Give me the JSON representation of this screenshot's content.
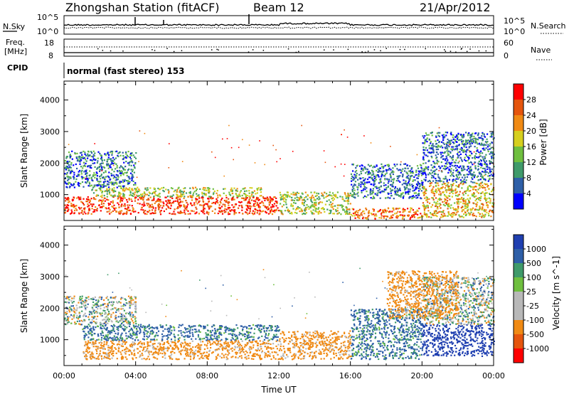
{
  "header": {
    "station": "Zhongshan Station (fitACF)",
    "beam": "Beam 12",
    "date": "21/Apr/2012"
  },
  "aux": {
    "nsky_label": "N.Sky",
    "nsearch_label": "N.Search",
    "noise_ticks": [
      "10^5",
      "10^0"
    ],
    "freq_label_1": "Freq.",
    "freq_label_2": "[MHz]",
    "freq_ticks": [
      "18",
      "8"
    ],
    "nave_label": "Nave",
    "nave_ticks": [
      "60",
      "0"
    ],
    "cpid_label": "CPID",
    "cpid_value": "normal (fast stereo) 153"
  },
  "colors": {
    "power_scale": [
      "#0000ff",
      "#2e5fa7",
      "#3f9a6a",
      "#6fbf3f",
      "#d6cf1e",
      "#f08a14",
      "#e5550d",
      "#ff0000"
    ],
    "velocity_scale": [
      "#ff0000",
      "#e5550d",
      "#f08a14",
      "#b8b8b8",
      "#b8b8b8",
      "#6fbf3f",
      "#3f9a6a",
      "#2e5fa7",
      "#1f3fb0"
    ]
  },
  "chart_data": [
    {
      "type": "heatmap",
      "panel": "power",
      "ylabel": "Slant Range [km]",
      "yticks": [
        "1000",
        "2000",
        "3000",
        "4000"
      ],
      "ylim": [
        180,
        4600
      ],
      "xlim": [
        0,
        24
      ],
      "colorbar_label": "Power [dB]",
      "colorbar_ticks": [
        "4",
        "8",
        "12",
        "16",
        "20",
        "24",
        "28"
      ],
      "colorbar_range": [
        0,
        32
      ],
      "bands": [
        {
          "t0": 0,
          "t1": 12,
          "r0": 400,
          "r1": 950,
          "value": 27
        },
        {
          "t0": 1.5,
          "t1": 11,
          "r0": 950,
          "r1": 1250,
          "value": 16
        },
        {
          "t0": 0,
          "t1": 4,
          "r0": 1250,
          "r1": 2400,
          "value": 8
        },
        {
          "t0": 12,
          "t1": 16,
          "r0": 400,
          "r1": 1100,
          "value": 16
        },
        {
          "t0": 16,
          "t1": 20,
          "r0": 250,
          "r1": 600,
          "value": 25
        },
        {
          "t0": 16,
          "t1": 20,
          "r0": 900,
          "r1": 2000,
          "value": 7
        },
        {
          "t0": 20,
          "t1": 24,
          "r0": 300,
          "r1": 1400,
          "value": 20
        },
        {
          "t0": 20,
          "t1": 24,
          "r0": 1400,
          "r1": 3000,
          "value": 7
        }
      ]
    },
    {
      "type": "heatmap",
      "panel": "velocity",
      "xlabel": "Time UT",
      "ylabel": "Slant Range [km]",
      "yticks": [
        "1000",
        "2000",
        "3000",
        "4000"
      ],
      "ylim": [
        180,
        4600
      ],
      "xlim": [
        0,
        24
      ],
      "xticks": [
        "00:00",
        "04:00",
        "08:00",
        "12:00",
        "16:00",
        "20:00",
        "00:00"
      ],
      "colorbar_label": "Velocity [m s^-1]",
      "colorbar_ticks": [
        "1000",
        "500",
        "100",
        "25",
        "-25",
        "-100",
        "-500",
        "-1000"
      ],
      "bands": [
        {
          "t0": 0,
          "t1": 4,
          "r0": 1500,
          "r1": 2400,
          "value": 0
        },
        {
          "t0": 1,
          "t1": 12,
          "r0": 400,
          "r1": 1000,
          "value": -200
        },
        {
          "t0": 1,
          "t1": 12,
          "r0": 1000,
          "r1": 1500,
          "value": 150
        },
        {
          "t0": 12,
          "t1": 16,
          "r0": 400,
          "r1": 1300,
          "value": -200
        },
        {
          "t0": 16,
          "t1": 20,
          "r0": 400,
          "r1": 2000,
          "value": 150
        },
        {
          "t0": 20,
          "t1": 24,
          "r0": 500,
          "r1": 1500,
          "value": 800
        },
        {
          "t0": 20,
          "t1": 24,
          "r0": 1500,
          "r1": 3000,
          "value": 0
        },
        {
          "t0": 18,
          "t1": 22,
          "r0": 1700,
          "r1": 3200,
          "value": -200
        }
      ]
    }
  ]
}
